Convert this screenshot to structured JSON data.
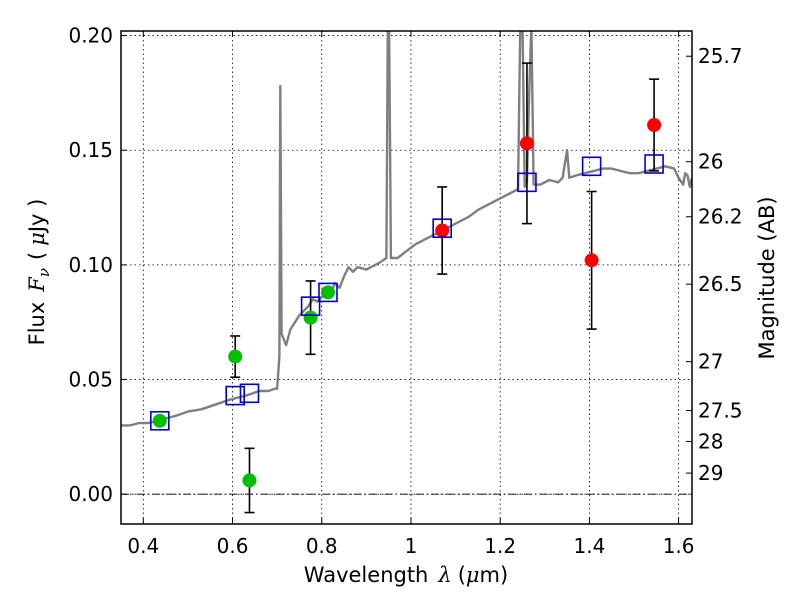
{
  "chart_data": {
    "type": "scatter",
    "xlabel": "Wavelength",
    "xlabel_symbol": "λ",
    "xlabel_unit_open": "(",
    "xlabel_unit_mu": "μ",
    "xlabel_unit_rest": "m)",
    "ylabel": "Flux",
    "ylabel_symbol": "F",
    "ylabel_subscript": "ν",
    "ylabel_unit_open": "(",
    "ylabel_unit_mu": "μ",
    "ylabel_unit_rest": "Jy )",
    "y2label": "Magnitude (AB)",
    "xlim": [
      0.35,
      1.63
    ],
    "ylim": [
      -0.013,
      0.202
    ],
    "grid": true,
    "x_ticks": [
      {
        "value": 0.4,
        "label": "0.4"
      },
      {
        "value": 0.6,
        "label": "0.6"
      },
      {
        "value": 0.8,
        "label": "0.8"
      },
      {
        "value": 1.0,
        "label": "1"
      },
      {
        "value": 1.2,
        "label": "1.2"
      },
      {
        "value": 1.4,
        "label": "1.4"
      },
      {
        "value": 1.6,
        "label": "1.6"
      }
    ],
    "y_ticks": [
      {
        "value": 0.0,
        "label": "0.00"
      },
      {
        "value": 0.05,
        "label": "0.05"
      },
      {
        "value": 0.1,
        "label": "0.10"
      },
      {
        "value": 0.15,
        "label": "0.15"
      },
      {
        "value": 0.2,
        "label": "0.20"
      }
    ],
    "y2_ticks": [
      {
        "label": "25.7",
        "flux": 0.191
      },
      {
        "label": "26",
        "flux": 0.145
      },
      {
        "label": "26.2",
        "flux": 0.121
      },
      {
        "label": "26.5",
        "flux": 0.0916
      },
      {
        "label": "27",
        "flux": 0.0578
      },
      {
        "label": "27.5",
        "flux": 0.0365
      },
      {
        "label": "28",
        "flux": 0.023
      },
      {
        "label": "29",
        "flux": 0.0092
      }
    ],
    "zero_line": 0.0,
    "colors": {
      "spectrum": "#7f7f7f",
      "model": "#0000cc",
      "green": "#00bf00",
      "red": "#ff0000",
      "errorbar": "#000000"
    },
    "spectrum": [
      [
        0.35,
        0.03
      ],
      [
        0.37,
        0.03
      ],
      [
        0.39,
        0.031
      ],
      [
        0.41,
        0.031
      ],
      [
        0.43,
        0.032
      ],
      [
        0.45,
        0.033
      ],
      [
        0.47,
        0.034
      ],
      [
        0.5,
        0.036
      ],
      [
        0.53,
        0.037
      ],
      [
        0.56,
        0.039
      ],
      [
        0.59,
        0.041
      ],
      [
        0.61,
        0.042
      ],
      [
        0.63,
        0.043
      ],
      [
        0.66,
        0.045
      ],
      [
        0.68,
        0.045
      ],
      [
        0.695,
        0.046
      ],
      [
        0.7,
        0.046
      ],
      [
        0.705,
        0.06
      ],
      [
        0.707,
        0.178
      ],
      [
        0.71,
        0.07
      ],
      [
        0.72,
        0.065
      ],
      [
        0.73,
        0.072
      ],
      [
        0.74,
        0.075
      ],
      [
        0.75,
        0.078
      ],
      [
        0.76,
        0.08
      ],
      [
        0.77,
        0.082
      ],
      [
        0.78,
        0.085
      ],
      [
        0.79,
        0.084
      ],
      [
        0.8,
        0.086
      ],
      [
        0.81,
        0.087
      ],
      [
        0.82,
        0.088
      ],
      [
        0.83,
        0.092
      ],
      [
        0.84,
        0.09
      ],
      [
        0.85,
        0.095
      ],
      [
        0.86,
        0.099
      ],
      [
        0.87,
        0.097
      ],
      [
        0.88,
        0.099
      ],
      [
        0.9,
        0.098
      ],
      [
        0.92,
        0.1
      ],
      [
        0.93,
        0.101
      ],
      [
        0.945,
        0.103
      ],
      [
        0.948,
        0.205
      ],
      [
        0.951,
        0.205
      ],
      [
        0.955,
        0.103
      ],
      [
        0.97,
        0.103
      ],
      [
        0.99,
        0.106
      ],
      [
        1.01,
        0.109
      ],
      [
        1.03,
        0.111
      ],
      [
        1.05,
        0.113
      ],
      [
        1.07,
        0.115
      ],
      [
        1.09,
        0.117
      ],
      [
        1.11,
        0.119
      ],
      [
        1.13,
        0.121
      ],
      [
        1.15,
        0.124
      ],
      [
        1.17,
        0.126
      ],
      [
        1.19,
        0.128
      ],
      [
        1.21,
        0.13
      ],
      [
        1.23,
        0.132
      ],
      [
        1.24,
        0.133
      ],
      [
        1.245,
        0.205
      ],
      [
        1.25,
        0.205
      ],
      [
        1.255,
        0.134
      ],
      [
        1.26,
        0.136
      ],
      [
        1.265,
        0.175
      ],
      [
        1.27,
        0.205
      ],
      [
        1.275,
        0.135
      ],
      [
        1.29,
        0.135
      ],
      [
        1.31,
        0.137
      ],
      [
        1.33,
        0.136
      ],
      [
        1.34,
        0.138
      ],
      [
        1.35,
        0.15
      ],
      [
        1.355,
        0.138
      ],
      [
        1.37,
        0.139
      ],
      [
        1.39,
        0.14
      ],
      [
        1.41,
        0.141
      ],
      [
        1.43,
        0.142
      ],
      [
        1.45,
        0.142
      ],
      [
        1.47,
        0.141
      ],
      [
        1.49,
        0.14
      ],
      [
        1.51,
        0.14
      ],
      [
        1.53,
        0.141
      ],
      [
        1.55,
        0.142
      ],
      [
        1.57,
        0.143
      ],
      [
        1.59,
        0.142
      ],
      [
        1.6,
        0.138
      ],
      [
        1.61,
        0.135
      ],
      [
        1.615,
        0.14
      ],
      [
        1.62,
        0.139
      ],
      [
        1.625,
        0.134
      ],
      [
        1.63,
        0.138
      ]
    ],
    "model_points": [
      [
        0.437,
        0.032
      ],
      [
        0.606,
        0.043
      ],
      [
        0.638,
        0.044
      ],
      [
        0.775,
        0.082
      ],
      [
        0.814,
        0.088
      ],
      [
        1.07,
        0.116
      ],
      [
        1.26,
        0.136
      ],
      [
        1.405,
        0.143
      ],
      [
        1.545,
        0.144
      ]
    ],
    "green_points": [
      {
        "x": 0.437,
        "y": 0.032
      },
      {
        "x": 0.606,
        "y": 0.06,
        "yerr": 0.009
      },
      {
        "x": 0.638,
        "y": 0.006,
        "yerr": 0.014
      },
      {
        "x": 0.775,
        "y": 0.077,
        "yerr": 0.016
      },
      {
        "x": 0.814,
        "y": 0.088
      }
    ],
    "red_points": [
      {
        "x": 1.07,
        "y": 0.115,
        "yerr": 0.019
      },
      {
        "x": 1.26,
        "y": 0.153,
        "yerr": 0.035
      },
      {
        "x": 1.405,
        "y": 0.102,
        "yerr": 0.03
      },
      {
        "x": 1.545,
        "y": 0.161,
        "yerr": 0.02
      }
    ]
  }
}
